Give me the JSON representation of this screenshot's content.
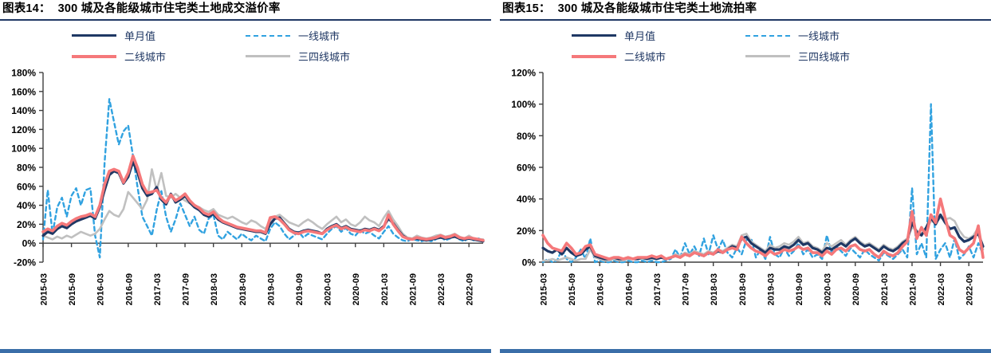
{
  "panels": [
    {
      "label": "图表14：",
      "title": "300 城及各能级城市住宅类土地成交溢价率"
    },
    {
      "label": "图表15：",
      "title": "300 城及各能级城市住宅类土地流拍率"
    }
  ],
  "theme": {
    "background": "#ffffff",
    "title_rule": "#1f3864",
    "footer_bar": "#3a6ea8",
    "axis": "#3f3f3f",
    "legend_text": "#203864",
    "tick_text": "#000000"
  },
  "chart_data": [
    {
      "type": "line",
      "title": "300 城及各能级城市住宅类土地成交溢价率",
      "xlabel": "",
      "ylabel": "",
      "unit": "%",
      "grid": false,
      "legend_position": "top",
      "ylim": [
        -20,
        180
      ],
      "yticks": [
        -20,
        0,
        20,
        40,
        60,
        80,
        100,
        120,
        140,
        160,
        180
      ],
      "x_tick_labels": [
        "2015-03",
        "2015-09",
        "2016-03",
        "2016-09",
        "2017-03",
        "2017-09",
        "2018-03",
        "2018-09",
        "2019-03",
        "2019-09",
        "2020-03",
        "2020-09",
        "2021-03",
        "2021-09",
        "2022-03",
        "2022-09"
      ],
      "x": [
        "2015-03",
        "2015-04",
        "2015-05",
        "2015-06",
        "2015-07",
        "2015-08",
        "2015-09",
        "2015-10",
        "2015-11",
        "2015-12",
        "2016-01",
        "2016-02",
        "2016-03",
        "2016-04",
        "2016-05",
        "2016-06",
        "2016-07",
        "2016-08",
        "2016-09",
        "2016-10",
        "2016-11",
        "2016-12",
        "2017-01",
        "2017-02",
        "2017-03",
        "2017-04",
        "2017-05",
        "2017-06",
        "2017-07",
        "2017-08",
        "2017-09",
        "2017-10",
        "2017-11",
        "2017-12",
        "2018-01",
        "2018-02",
        "2018-03",
        "2018-04",
        "2018-05",
        "2018-06",
        "2018-07",
        "2018-08",
        "2018-09",
        "2018-10",
        "2018-11",
        "2018-12",
        "2019-01",
        "2019-02",
        "2019-03",
        "2019-04",
        "2019-05",
        "2019-06",
        "2019-07",
        "2019-08",
        "2019-09",
        "2019-10",
        "2019-11",
        "2019-12",
        "2020-01",
        "2020-02",
        "2020-03",
        "2020-04",
        "2020-05",
        "2020-06",
        "2020-07",
        "2020-08",
        "2020-09",
        "2020-10",
        "2020-11",
        "2020-12",
        "2021-01",
        "2021-02",
        "2021-03",
        "2021-04",
        "2021-05",
        "2021-06",
        "2021-07",
        "2021-08",
        "2021-09",
        "2021-10",
        "2021-11",
        "2021-12",
        "2022-01",
        "2022-02",
        "2022-03",
        "2022-04",
        "2022-05",
        "2022-06",
        "2022-07",
        "2022-08",
        "2022-09",
        "2022-10",
        "2022-11",
        "2022-12"
      ],
      "draw_order": [
        1,
        3,
        0,
        2
      ],
      "series": [
        {
          "name": "单月值",
          "color": "#1f3864",
          "width": 3.2,
          "dash": null,
          "values": [
            8,
            12,
            10,
            15,
            18,
            16,
            20,
            23,
            25,
            27,
            29,
            26,
            38,
            56,
            72,
            76,
            74,
            63,
            70,
            86,
            74,
            58,
            50,
            52,
            59,
            46,
            41,
            52,
            43,
            46,
            50,
            43,
            38,
            35,
            30,
            28,
            31,
            25,
            22,
            20,
            18,
            16,
            15,
            14,
            13,
            12,
            12,
            10,
            20,
            26,
            27,
            21,
            15,
            12,
            11,
            13,
            14,
            13,
            12,
            10,
            15,
            18,
            20,
            16,
            18,
            15,
            14,
            13,
            15,
            14,
            16,
            14,
            18,
            26,
            21,
            14,
            8,
            5,
            4,
            5,
            4,
            3,
            4,
            5,
            6,
            5,
            6,
            7,
            5,
            4,
            5,
            4,
            3,
            2
          ]
        },
        {
          "name": "一线城市",
          "color": "#31a2e0",
          "width": 2.4,
          "dash": "5 4",
          "values": [
            4,
            56,
            10,
            38,
            48,
            28,
            50,
            58,
            40,
            56,
            58,
            8,
            -15,
            85,
            152,
            128,
            104,
            118,
            124,
            92,
            58,
            28,
            18,
            8,
            35,
            55,
            28,
            12,
            25,
            42,
            30,
            18,
            28,
            14,
            10,
            26,
            30,
            8,
            4,
            12,
            8,
            4,
            10,
            6,
            3,
            8,
            5,
            2,
            15,
            22,
            18,
            10,
            4,
            8,
            12,
            6,
            10,
            8,
            6,
            4,
            10,
            15,
            18,
            12,
            16,
            10,
            8,
            14,
            10,
            12,
            8,
            5,
            12,
            18,
            10,
            6,
            3,
            2,
            5,
            3,
            2,
            4,
            2,
            4,
            7,
            3,
            5,
            8,
            4,
            2,
            6,
            3,
            5,
            3
          ]
        },
        {
          "name": "二线城市",
          "color": "#f5787a",
          "width": 3.6,
          "dash": null,
          "values": [
            12,
            15,
            13,
            18,
            21,
            19,
            23,
            26,
            28,
            29,
            31,
            28,
            40,
            62,
            76,
            78,
            76,
            64,
            74,
            92,
            79,
            62,
            53,
            54,
            56,
            48,
            43,
            51,
            45,
            48,
            52,
            45,
            40,
            37,
            32,
            30,
            33,
            27,
            23,
            21,
            19,
            17,
            16,
            15,
            14,
            13,
            13,
            11,
            27,
            28,
            25,
            20,
            14,
            11,
            10,
            12,
            13,
            12,
            11,
            10,
            14,
            17,
            19,
            15,
            17,
            14,
            13,
            12,
            14,
            13,
            15,
            13,
            17,
            30,
            20,
            13,
            7,
            5,
            4,
            6,
            5,
            4,
            5,
            6,
            8,
            6,
            7,
            9,
            6,
            5,
            6,
            5,
            4,
            3
          ]
        },
        {
          "name": "三四线城市",
          "color": "#c0c0c0",
          "width": 2.6,
          "dash": null,
          "values": [
            8,
            6,
            4,
            7,
            5,
            8,
            6,
            9,
            12,
            10,
            8,
            10,
            15,
            25,
            34,
            30,
            28,
            36,
            54,
            48,
            42,
            36,
            46,
            78,
            56,
            74,
            50,
            48,
            52,
            48,
            45,
            42,
            40,
            38,
            35,
            33,
            36,
            30,
            28,
            26,
            28,
            25,
            22,
            20,
            24,
            22,
            18,
            15,
            24,
            28,
            30,
            26,
            22,
            20,
            18,
            22,
            25,
            22,
            18,
            15,
            20,
            24,
            28,
            22,
            25,
            20,
            18,
            22,
            28,
            24,
            22,
            18,
            27,
            34,
            25,
            18,
            10,
            6,
            5,
            8,
            6,
            5,
            6,
            8,
            9,
            7,
            8,
            10,
            7,
            5,
            8,
            5,
            4,
            4
          ]
        }
      ]
    },
    {
      "type": "line",
      "title": "300 城及各能级城市住宅类土地流拍率",
      "xlabel": "",
      "ylabel": "",
      "unit": "%",
      "grid": false,
      "legend_position": "top",
      "ylim": [
        0,
        120
      ],
      "yticks": [
        0,
        20,
        40,
        60,
        80,
        100,
        120
      ],
      "x_tick_labels": [
        "2015-03",
        "2015-09",
        "2016-03",
        "2016-09",
        "2017-03",
        "2017-09",
        "2018-03",
        "2018-09",
        "2019-03",
        "2019-09",
        "2020-03",
        "2020-09",
        "2021-03",
        "2021-09",
        "2022-03",
        "2022-09"
      ],
      "x": [
        "2015-03",
        "2015-04",
        "2015-05",
        "2015-06",
        "2015-07",
        "2015-08",
        "2015-09",
        "2015-10",
        "2015-11",
        "2015-12",
        "2016-01",
        "2016-02",
        "2016-03",
        "2016-04",
        "2016-05",
        "2016-06",
        "2016-07",
        "2016-08",
        "2016-09",
        "2016-10",
        "2016-11",
        "2016-12",
        "2017-01",
        "2017-02",
        "2017-03",
        "2017-04",
        "2017-05",
        "2017-06",
        "2017-07",
        "2017-08",
        "2017-09",
        "2017-10",
        "2017-11",
        "2017-12",
        "2018-01",
        "2018-02",
        "2018-03",
        "2018-04",
        "2018-05",
        "2018-06",
        "2018-07",
        "2018-08",
        "2018-09",
        "2018-10",
        "2018-11",
        "2018-12",
        "2019-01",
        "2019-02",
        "2019-03",
        "2019-04",
        "2019-05",
        "2019-06",
        "2019-07",
        "2019-08",
        "2019-09",
        "2019-10",
        "2019-11",
        "2019-12",
        "2020-01",
        "2020-02",
        "2020-03",
        "2020-04",
        "2020-05",
        "2020-06",
        "2020-07",
        "2020-08",
        "2020-09",
        "2020-10",
        "2020-11",
        "2020-12",
        "2021-01",
        "2021-02",
        "2021-03",
        "2021-04",
        "2021-05",
        "2021-06",
        "2021-07",
        "2021-08",
        "2021-09",
        "2021-10",
        "2021-11",
        "2021-12",
        "2022-01",
        "2022-02",
        "2022-03",
        "2022-04",
        "2022-05",
        "2022-06",
        "2022-07",
        "2022-08",
        "2022-09",
        "2022-10",
        "2022-11",
        "2022-12"
      ],
      "draw_order": [
        1,
        3,
        0,
        2
      ],
      "series": [
        {
          "name": "单月值",
          "color": "#1f3864",
          "width": 3.2,
          "dash": null,
          "values": [
            9,
            7,
            6,
            8,
            5,
            9,
            6,
            4,
            5,
            8,
            10,
            4,
            3,
            2,
            2,
            3,
            2,
            2,
            3,
            2,
            2,
            3,
            2,
            3,
            2,
            3,
            2,
            3,
            4,
            3,
            5,
            4,
            6,
            5,
            4,
            6,
            5,
            7,
            6,
            8,
            10,
            9,
            15,
            16,
            12,
            10,
            8,
            6,
            9,
            8,
            8,
            10,
            9,
            11,
            14,
            11,
            12,
            9,
            8,
            6,
            9,
            8,
            10,
            12,
            10,
            13,
            15,
            12,
            10,
            11,
            9,
            7,
            10,
            8,
            7,
            9,
            12,
            14,
            25,
            19,
            17,
            22,
            28,
            24,
            30,
            25,
            21,
            22,
            16,
            13,
            14,
            16,
            18,
            10
          ]
        },
        {
          "name": "一线城市",
          "color": "#31a2e0",
          "width": 2.4,
          "dash": "5 4",
          "values": [
            0,
            2,
            0,
            1,
            8,
            2,
            0,
            3,
            8,
            2,
            15,
            0,
            1,
            0,
            0,
            1,
            0,
            0,
            1,
            0,
            0,
            1,
            0,
            1,
            0,
            0,
            1,
            2,
            8,
            3,
            12,
            5,
            10,
            4,
            15,
            5,
            17,
            8,
            14,
            6,
            3,
            9,
            5,
            14,
            15,
            3,
            8,
            2,
            16,
            5,
            3,
            9,
            4,
            7,
            12,
            5,
            8,
            3,
            5,
            2,
            17,
            6,
            10,
            7,
            4,
            9,
            6,
            3,
            8,
            5,
            3,
            1,
            6,
            4,
            2,
            5,
            8,
            3,
            47,
            5,
            12,
            3,
            100,
            2,
            8,
            12,
            3,
            15,
            2,
            5,
            10,
            3,
            12,
            5
          ]
        },
        {
          "name": "二线城市",
          "color": "#f5787a",
          "width": 3.6,
          "dash": null,
          "values": [
            17,
            12,
            9,
            8,
            7,
            12,
            9,
            5,
            6,
            10,
            11,
            5,
            4,
            3,
            2,
            3,
            3,
            2,
            3,
            2,
            3,
            3,
            3,
            4,
            3,
            4,
            2,
            3,
            4,
            3,
            5,
            4,
            6,
            5,
            4,
            6,
            5,
            8,
            6,
            8,
            9,
            8,
            16,
            12,
            9,
            7,
            6,
            4,
            7,
            5,
            6,
            8,
            7,
            8,
            10,
            8,
            9,
            6,
            6,
            4,
            7,
            5,
            8,
            9,
            7,
            10,
            11,
            8,
            7,
            8,
            5,
            3,
            7,
            5,
            4,
            6,
            10,
            13,
            32,
            15,
            22,
            17,
            30,
            25,
            40,
            28,
            17,
            15,
            8,
            6,
            9,
            12,
            23,
            3
          ]
        },
        {
          "name": "三四线城市",
          "color": "#c0c0c0",
          "width": 2.6,
          "dash": null,
          "values": [
            1,
            1,
            2,
            1,
            2,
            3,
            2,
            1,
            2,
            2,
            8,
            3,
            2,
            1,
            1,
            2,
            1,
            1,
            2,
            2,
            2,
            2,
            2,
            2,
            2,
            3,
            2,
            3,
            5,
            4,
            6,
            5,
            7,
            6,
            5,
            7,
            6,
            8,
            7,
            9,
            11,
            10,
            17,
            18,
            13,
            11,
            9,
            7,
            11,
            9,
            10,
            12,
            11,
            13,
            16,
            12,
            13,
            10,
            9,
            7,
            12,
            10,
            12,
            14,
            11,
            14,
            16,
            13,
            11,
            12,
            10,
            8,
            11,
            9,
            8,
            10,
            13,
            15,
            22,
            20,
            18,
            21,
            26,
            25,
            28,
            27,
            28,
            26,
            20,
            16,
            15,
            17,
            22,
            8
          ]
        }
      ]
    }
  ]
}
